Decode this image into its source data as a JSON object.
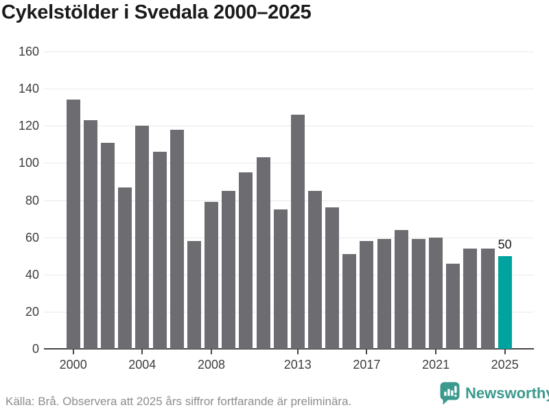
{
  "title": "Cykelstölder i Svedala 2000–2025",
  "chart_data": {
    "type": "bar",
    "title": "Cykelstölder i Svedala 2000–2025",
    "categories": [
      "2000",
      "2001",
      "2002",
      "2003",
      "2004",
      "2005",
      "2006",
      "2007",
      "2008",
      "2009",
      "2010",
      "2011",
      "2012",
      "2013",
      "2014",
      "2015",
      "2016",
      "2017",
      "2018",
      "2019",
      "2020",
      "2021",
      "2022",
      "2023",
      "2024",
      "2025"
    ],
    "values": [
      134,
      123,
      111,
      87,
      120,
      106,
      118,
      58,
      79,
      85,
      95,
      103,
      75,
      126,
      85,
      76,
      51,
      58,
      59,
      64,
      59,
      60,
      46,
      54,
      54,
      50
    ],
    "xlabel": "",
    "ylabel": "",
    "ylim": [
      0,
      160
    ],
    "y_ticks": [
      0,
      20,
      40,
      60,
      80,
      100,
      120,
      140,
      160
    ],
    "x_tick_labels": [
      "2000",
      "2004",
      "2008",
      "2013",
      "2017",
      "2021",
      "2025"
    ],
    "x_tick_indices": [
      0,
      4,
      8,
      13,
      17,
      21,
      25
    ],
    "grid": true,
    "legend": false,
    "bar_color": "#6d6c71",
    "highlight": {
      "category": "2025",
      "color": "#00a39e",
      "label": "50"
    }
  },
  "footer": {
    "source": "Källa: Brå. Observera att 2025 års siffror fortfarande är preliminära.",
    "brand": "Newsworthy"
  },
  "colors": {
    "bar": "#6d6c71",
    "highlight": "#00a39e",
    "grid": "#e9e9e9",
    "axis": "#454545",
    "title_text": "#1a1a1a",
    "tick_text": "#3d3d3f",
    "source_text": "#8c8c8c",
    "brand_teal": "#3b998d"
  }
}
